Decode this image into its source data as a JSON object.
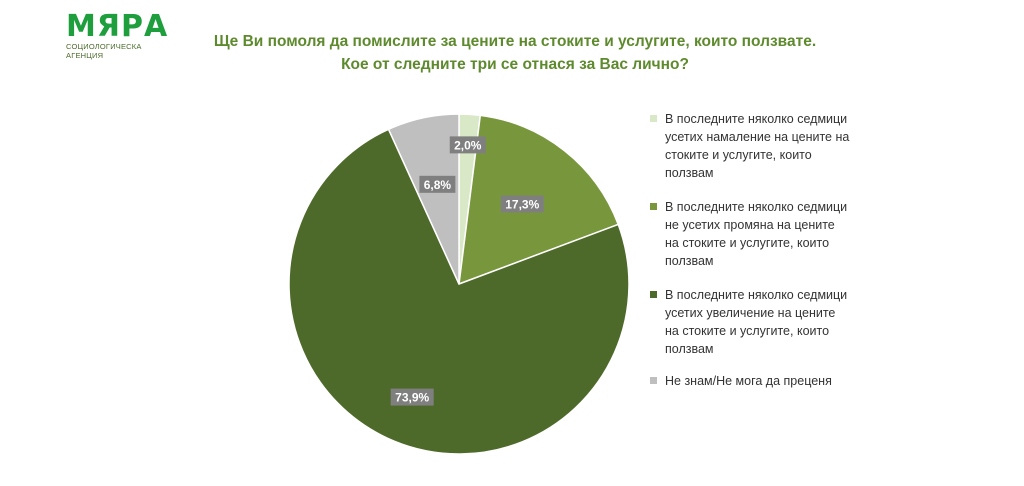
{
  "logo": {
    "name": "МЯРА",
    "subtitle": "СОЦИОЛОГИЧЕСКА АГЕНЦИЯ"
  },
  "title": {
    "line1": "Ще Ви помоля да помислите за цените на стоките и услугите, които ползвате.",
    "line2": "Кое от следните три се отнася за Вас лично?"
  },
  "colors": {
    "brand": "#1f9e3e",
    "title": "#5e8a2e",
    "label_bg": "#7f7f7f"
  },
  "chart_data": {
    "type": "pie",
    "start_angle_deg": 0,
    "direction": "clockwise",
    "legend_position": "right",
    "slices": [
      {
        "label": "В последните няколко седмици усетих намаление на цените на стоките и услугите, които ползвам",
        "value": 2.0,
        "display": "2,0%",
        "color": "#d9e8c6"
      },
      {
        "label": "В последните няколко седмици не усетих промяна на цените на стоките и услугите, които ползвам",
        "value": 17.3,
        "display": "17,3%",
        "color": "#78973c"
      },
      {
        "label": "В последните няколко седмици усетих увеличение на цените на стоките и услугите, които ползвам",
        "value": 73.9,
        "display": "73,9%",
        "color": "#4e6a2a"
      },
      {
        "label": "Не знам/Не мога да преценя",
        "value": 6.8,
        "display": "6,8%",
        "color": "#bfbfbf"
      }
    ]
  }
}
